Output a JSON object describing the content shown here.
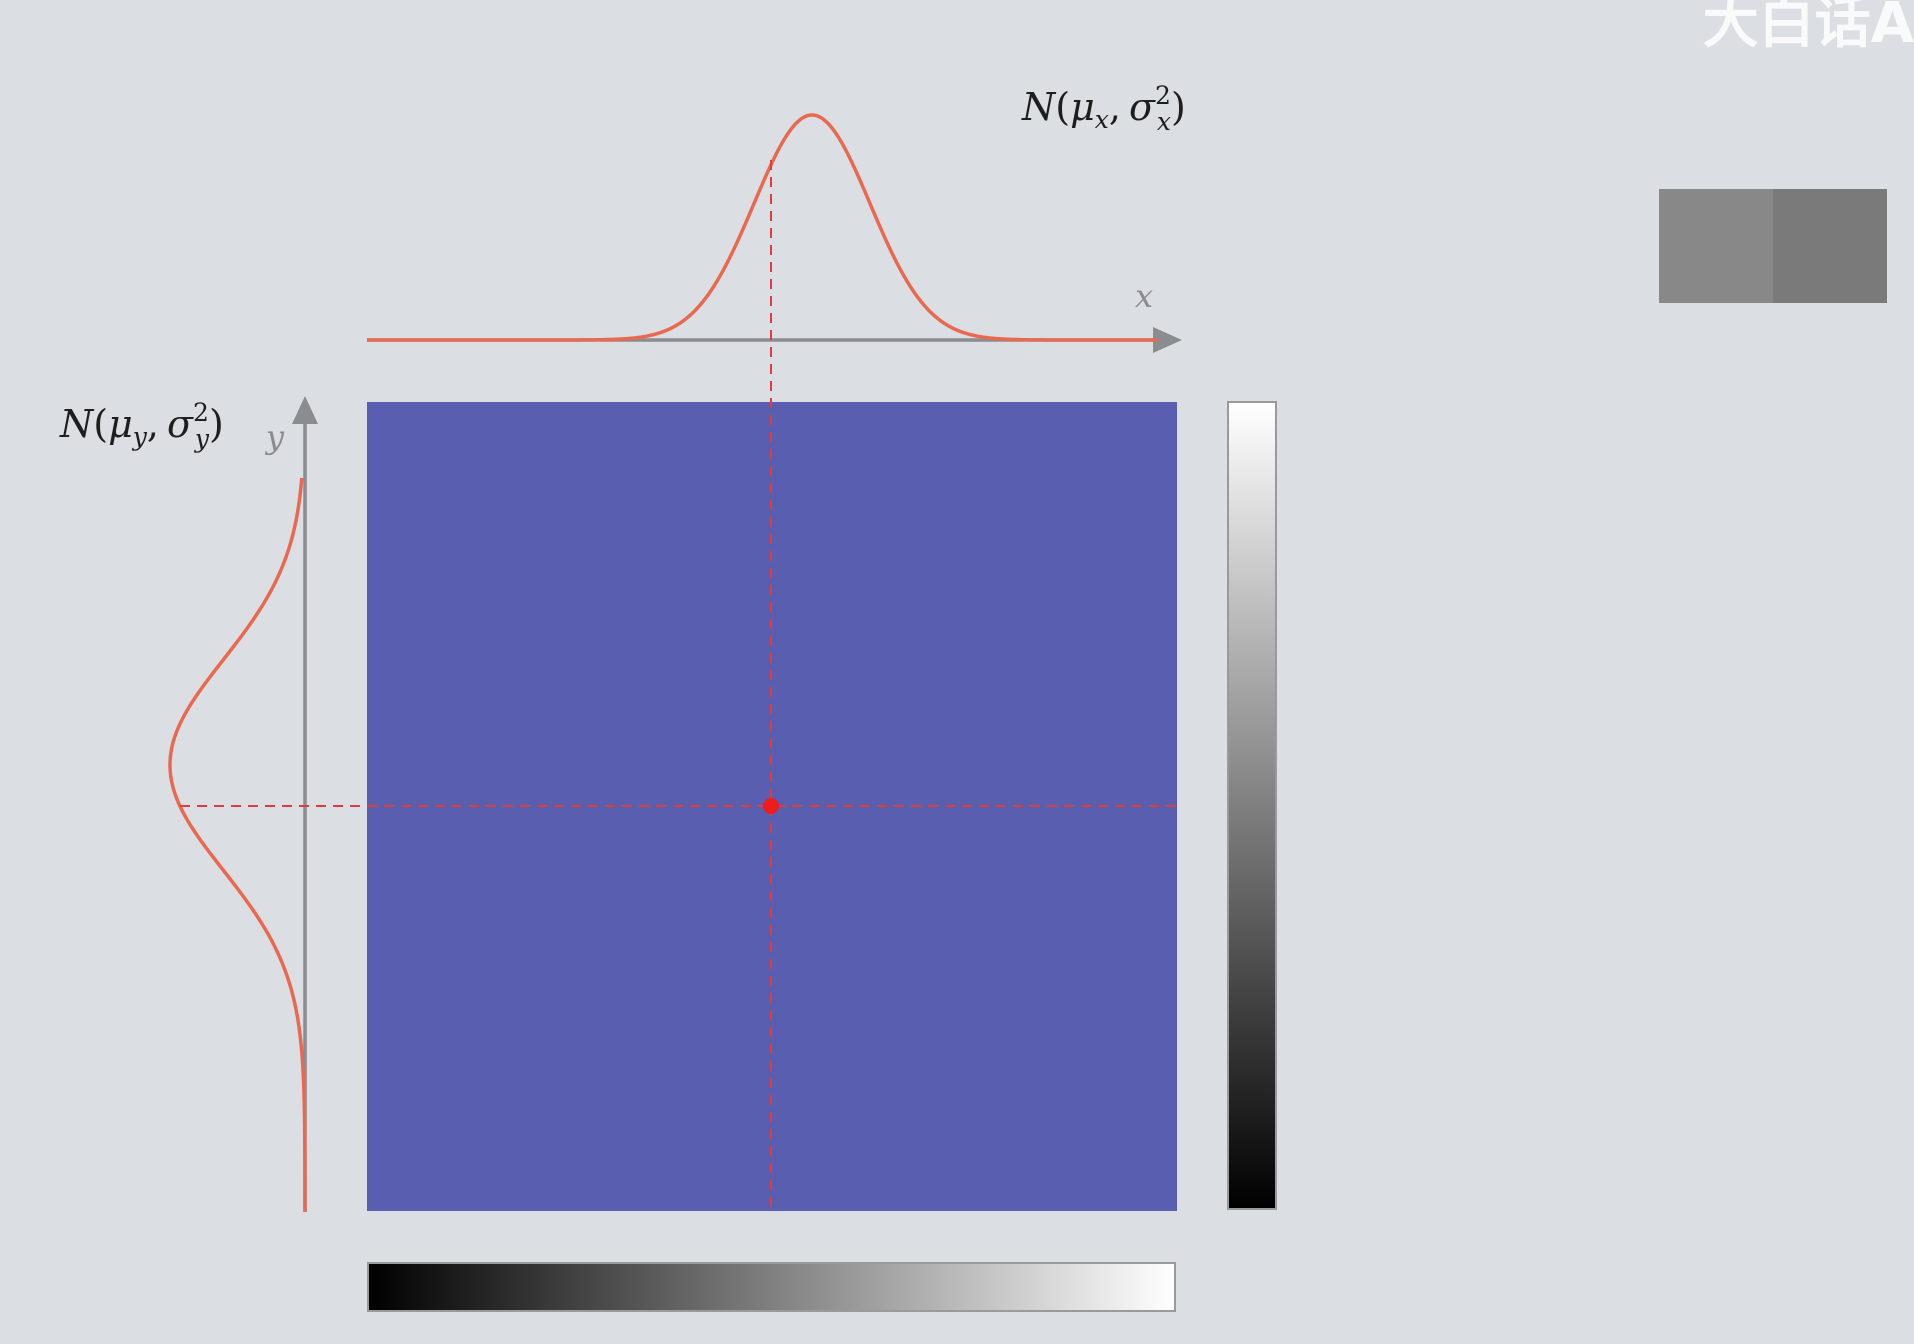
{
  "watermark": "大白话A",
  "labels": {
    "x_axis": "x",
    "y_axis": "y"
  },
  "distributions": {
    "x": {
      "N": "N",
      "open": "(",
      "mu": "μ",
      "sub": "x",
      "comma": ",",
      "sigma": "σ",
      "sup": "2",
      "close": ")"
    },
    "y": {
      "N": "N",
      "open": "(",
      "mu": "μ",
      "sub": "y",
      "comma": ",",
      "sigma": "σ",
      "sup": "2",
      "close": ")"
    }
  },
  "colors": {
    "background": "#dbdfe4",
    "square_fill": "#5a5eb0",
    "curve": "#e8694f",
    "crosshair": "#e23b3b",
    "point": "#ee1c1c",
    "axis": "#8a8c90",
    "swatch_left": "#888888",
    "swatch_right": "#7a7a7a"
  },
  "gradients": {
    "vertical": {
      "top": "#ffffff",
      "bottom": "#000000"
    },
    "horizontal": {
      "left": "#000000",
      "right": "#ffffff"
    }
  }
}
